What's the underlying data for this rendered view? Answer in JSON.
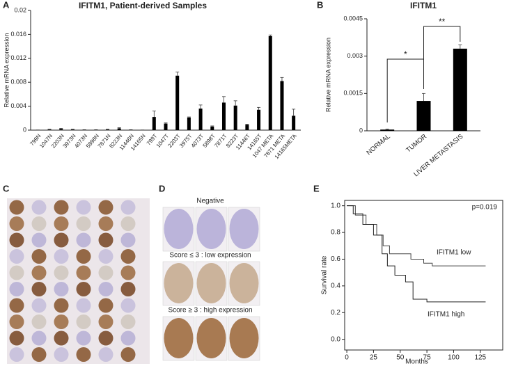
{
  "chart_data": [
    {
      "type": "bar",
      "panel": "A",
      "title": "IFITM1, Patient-derived Samples",
      "y_label": "Relative mRNA expression",
      "categories": [
        "799N",
        "1047N",
        "2203N",
        "3973N",
        "4073N",
        "5898N",
        "7871N",
        "8223N",
        "11446N",
        "14165N",
        "799T",
        "1047T",
        "2203T",
        "3975T",
        "4073T",
        "5898T",
        "7871T",
        "8223T",
        "11446T",
        "14165T",
        "1047 META",
        "7871 META",
        "14165META"
      ],
      "values": [
        2e-05,
        0.0001,
        0.0002,
        0.0001,
        5e-05,
        5e-05,
        0.0001,
        0.0003,
        5e-05,
        2e-05,
        0.0022,
        0.0011,
        0.0091,
        0.0021,
        0.0036,
        0.0006,
        0.0046,
        0.0041,
        0.0009,
        0.0034,
        0.0157,
        0.0082,
        0.0024
      ],
      "errors": [
        1e-05,
        5e-05,
        0.0001,
        5e-05,
        2e-05,
        2e-05,
        5e-05,
        0.0001,
        2e-05,
        1e-05,
        0.001,
        0.0001,
        0.0006,
        0.0001,
        0.0006,
        0.0001,
        0.001,
        0.0008,
        0.0001,
        0.0004,
        0.0002,
        0.0006,
        0.0011
      ],
      "color": "#000000",
      "ylim": [
        0,
        0.02
      ],
      "yticks": [
        0,
        0.004,
        0.008,
        0.012,
        0.016,
        0.02
      ]
    },
    {
      "type": "bar",
      "panel": "B",
      "title": "IFITM1",
      "y_label": "Relative mRNA expression",
      "categories": [
        "NORMAL",
        "TUMOR",
        "LIVER METASTASIS"
      ],
      "values": [
        5e-05,
        0.0012,
        0.0033
      ],
      "errors": [
        2e-05,
        0.0003,
        0.00015
      ],
      "color": "#000000",
      "ylim": [
        0,
        0.0045
      ],
      "yticks": [
        0,
        0.0015,
        0.003,
        0.0045
      ],
      "annotations": [
        "*",
        "**"
      ]
    },
    {
      "type": "line",
      "panel": "E",
      "x_label": "Months",
      "y_label": "Survival rate",
      "annotation": "p=0.019",
      "xlim": [
        -2,
        146
      ],
      "xticks": [
        0,
        25,
        50,
        75,
        100,
        125
      ],
      "ylim": [
        -0.08,
        1.04
      ],
      "yticks": [
        {
          "value": 0,
          "label": "0.0"
        },
        0.2,
        0.4,
        0.6,
        0.8,
        {
          "value": 1,
          "label": "1.0"
        }
      ],
      "series": [
        {
          "name": "IFITM1 low",
          "color": "#444444",
          "x": [
            0,
            8,
            8,
            18,
            18,
            28,
            28,
            34,
            34,
            40,
            40,
            60,
            60,
            72,
            72,
            80,
            80,
            130
          ],
          "values": [
            1,
            1,
            0.93,
            0.93,
            0.86,
            0.86,
            0.78,
            0.78,
            0.7,
            0.7,
            0.64,
            0.64,
            0.6,
            0.6,
            0.57,
            0.57,
            0.55,
            0.55
          ]
        },
        {
          "name": "IFITM1 high",
          "color": "#222222",
          "x": [
            0,
            6,
            6,
            15,
            15,
            25,
            25,
            33,
            33,
            38,
            38,
            45,
            45,
            55,
            55,
            62,
            62,
            75,
            75,
            130
          ],
          "values": [
            1,
            1,
            0.94,
            0.94,
            0.86,
            0.86,
            0.78,
            0.78,
            0.64,
            0.64,
            0.55,
            0.55,
            0.48,
            0.48,
            0.43,
            0.43,
            0.3,
            0.3,
            0.28,
            0.28
          ]
        }
      ]
    }
  ],
  "panel_c": {
    "letter": "C"
  },
  "panel_d": {
    "letter": "D",
    "row_labels": [
      "Negative",
      "Score ≤ 3 : low expression",
      "Score ≥ 3 : high expression"
    ]
  }
}
